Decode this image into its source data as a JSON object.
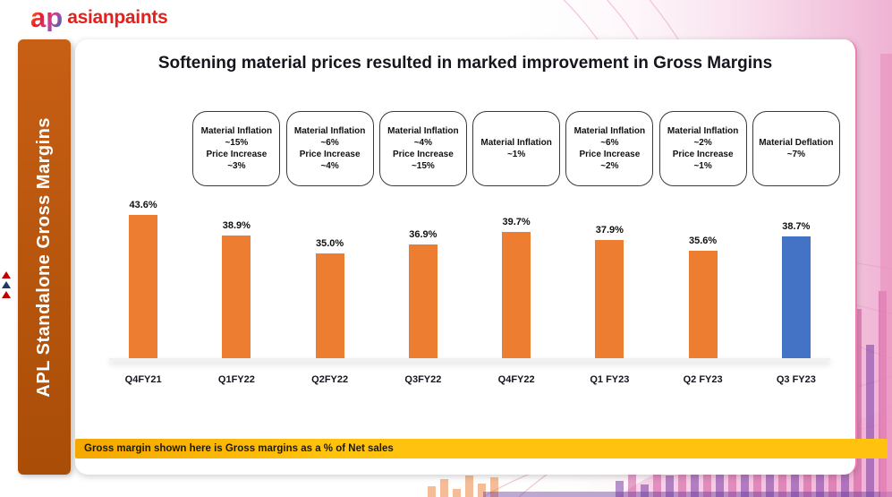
{
  "brand": {
    "logo_ap": "ap",
    "logo_text": "asianpaints"
  },
  "sidebar": {
    "title": "APL Standalone Gross Margins"
  },
  "main": {
    "title": "Softening material prices resulted in marked improvement in Gross Margins",
    "footnote": "Gross margin shown here is Gross margins as a % of Net sales"
  },
  "colors": {
    "bar_default": "#ED7D31",
    "bar_highlight": "#4472C4",
    "sidebar": "#B85209",
    "banner": "#FFC20E",
    "brand_red": "#E4201F"
  },
  "chart_data": {
    "type": "bar",
    "title": "Softening material prices resulted in marked improvement in Gross Margins",
    "categories": [
      "Q4FY21",
      "Q1FY22",
      "Q2FY22",
      "Q3FY22",
      "Q4FY22",
      "Q1 FY23",
      "Q2 FY23",
      "Q3 FY23"
    ],
    "values": [
      43.6,
      38.9,
      35.0,
      36.9,
      39.7,
      37.9,
      35.6,
      38.7
    ],
    "labels": [
      "43.6%",
      "38.9%",
      "35.0%",
      "36.9%",
      "39.7%",
      "37.9%",
      "35.6%",
      "38.7%"
    ],
    "xlabel": "",
    "ylabel": "",
    "ylim": [
      11.6,
      48
    ],
    "y_axis_visible": false,
    "gridlines": false,
    "highlight_index": 7,
    "bar_color_default": "#ED7D31",
    "bar_color_highlight": "#4472C4",
    "annotations": [
      null,
      [
        "Material Inflation",
        "~15%",
        "Price Increase",
        "~3%"
      ],
      [
        "Material Inflation",
        "~6%",
        "Price Increase",
        "~4%"
      ],
      [
        "Material Inflation",
        "~4%",
        "Price Increase",
        "~15%"
      ],
      [
        "Material Inflation",
        "~1%"
      ],
      [
        "Material Inflation",
        "~6%",
        "Price Increase",
        "~2%"
      ],
      [
        "Material Inflation",
        "~2%",
        "Price Increase",
        "~1%"
      ],
      [
        "Material Deflation",
        "~7%"
      ]
    ]
  }
}
